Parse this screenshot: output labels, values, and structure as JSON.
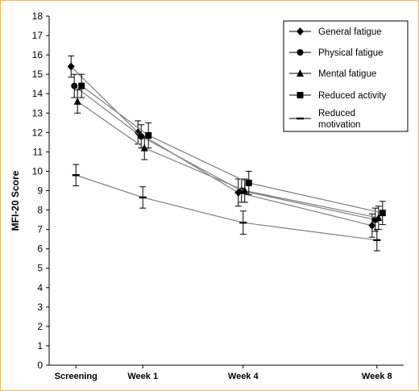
{
  "chart_data": {
    "type": "line",
    "title": "",
    "xlabel": "",
    "ylabel": "MFI-20 Score",
    "ylim": [
      0,
      18
    ],
    "yticks": [
      "0",
      "1",
      "2",
      "3",
      "4",
      "5",
      "6",
      "7",
      "8",
      "9",
      "10",
      "11",
      "12",
      "13",
      "14",
      "15",
      "16",
      "17",
      "18"
    ],
    "categories": [
      "Screening",
      "Week 1",
      "Week 4",
      "Week 8"
    ],
    "x_weeks": [
      -1,
      1,
      4,
      8
    ],
    "grid": false,
    "legend_position": "top-right",
    "line_color": "#7f7f7f",
    "series": [
      {
        "name": "General fatigue",
        "marker": "diamond",
        "values": [
          15.4,
          12.0,
          8.9,
          7.2
        ],
        "errors": [
          0.55,
          0.6,
          0.7,
          0.6
        ]
      },
      {
        "name": "Physical fatigue",
        "marker": "circle",
        "values": [
          14.4,
          11.8,
          9.0,
          7.5
        ],
        "errors": [
          0.6,
          0.6,
          0.6,
          0.6
        ]
      },
      {
        "name": "Mental fatigue",
        "marker": "triangle",
        "values": [
          13.6,
          11.2,
          9.0,
          7.6
        ],
        "errors": [
          0.6,
          0.6,
          0.6,
          0.6
        ]
      },
      {
        "name": "Reduced activity",
        "marker": "square",
        "values": [
          14.4,
          11.85,
          9.4,
          7.85
        ],
        "errors": [
          0.6,
          0.65,
          0.6,
          0.6
        ]
      },
      {
        "name": "Reduced\nmotivation",
        "marker": "dash",
        "values": [
          9.8,
          8.65,
          7.35,
          6.45
        ],
        "errors": [
          0.55,
          0.55,
          0.6,
          0.55
        ]
      }
    ]
  }
}
